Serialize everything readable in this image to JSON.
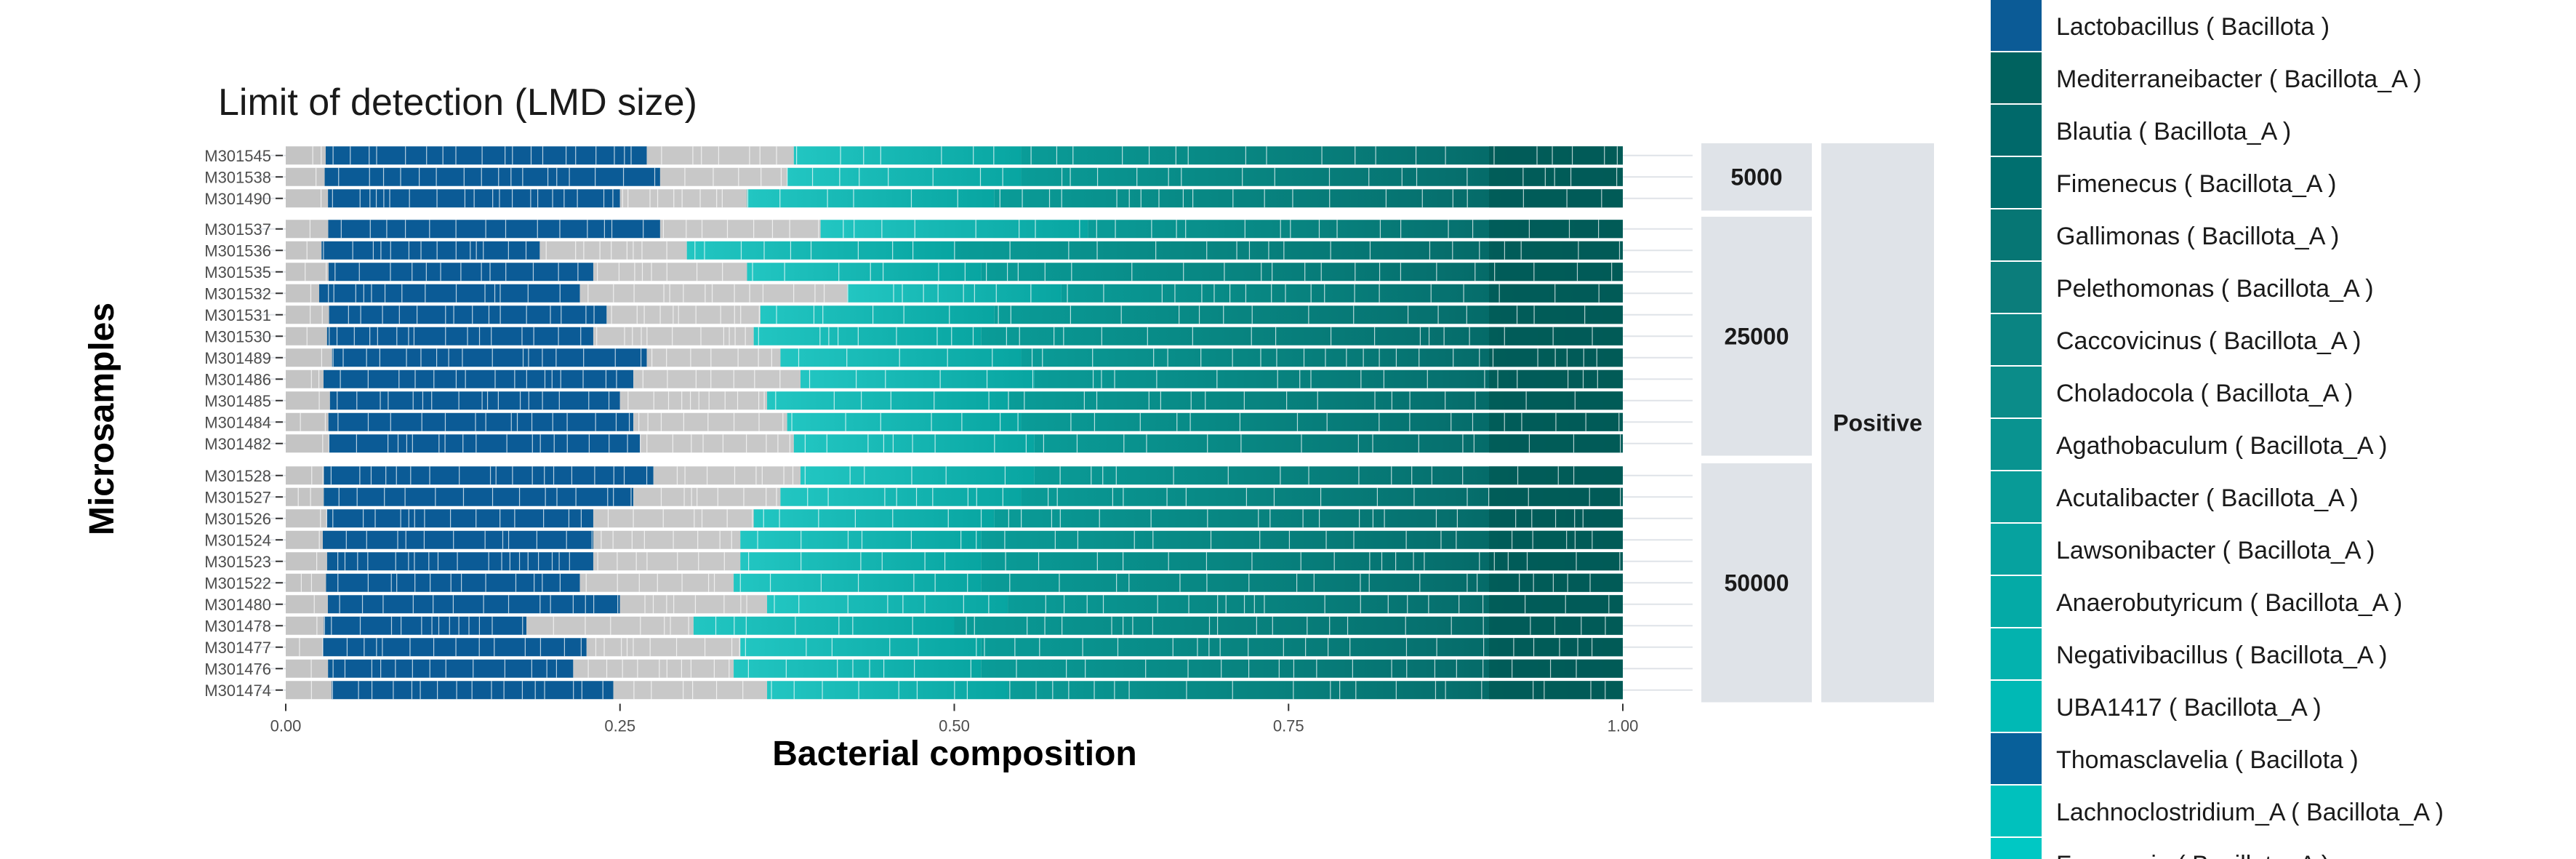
{
  "chart_data": {
    "type": "bar",
    "orientation": "horizontal",
    "stacked": true,
    "title": "Limit of detection (LMD size)",
    "xlabel": "Bacterial composition",
    "ylabel": "Microsamples",
    "xlim": [
      0,
      1
    ],
    "x_ticks": [
      "0.00",
      "0.25",
      "0.50",
      "0.75",
      "1.00"
    ],
    "facet_outer": "Positive",
    "facets": [
      {
        "label": "5000",
        "samples": [
          {
            "id": "M301545",
            "lactobacillus": 0.27,
            "grey_end": 0.38,
            "cyan_end": 0.55
          },
          {
            "id": "M301538",
            "lactobacillus": 0.28,
            "grey_end": 0.375,
            "cyan_end": 0.55
          },
          {
            "id": "M301490",
            "lactobacillus": 0.25,
            "grey_end": 0.345,
            "cyan_end": 0.53
          }
        ]
      },
      {
        "label": "25000",
        "samples": [
          {
            "id": "M301537",
            "lactobacillus": 0.28,
            "grey_end": 0.4,
            "cyan_end": 0.6
          },
          {
            "id": "M301536",
            "lactobacillus": 0.19,
            "grey_end": 0.3,
            "cyan_end": 0.5
          },
          {
            "id": "M301535",
            "lactobacillus": 0.23,
            "grey_end": 0.345,
            "cyan_end": 0.52
          },
          {
            "id": "M301532",
            "lactobacillus": 0.22,
            "grey_end": 0.42,
            "cyan_end": 0.58
          },
          {
            "id": "M301531",
            "lactobacillus": 0.24,
            "grey_end": 0.355,
            "cyan_end": 0.53
          },
          {
            "id": "M301530",
            "lactobacillus": 0.23,
            "grey_end": 0.35,
            "cyan_end": 0.52
          },
          {
            "id": "M301489",
            "lactobacillus": 0.27,
            "grey_end": 0.37,
            "cyan_end": 0.55
          },
          {
            "id": "M301486",
            "lactobacillus": 0.26,
            "grey_end": 0.385,
            "cyan_end": 0.56
          },
          {
            "id": "M301485",
            "lactobacillus": 0.25,
            "grey_end": 0.36,
            "cyan_end": 0.54
          },
          {
            "id": "M301484",
            "lactobacillus": 0.26,
            "grey_end": 0.375,
            "cyan_end": 0.55
          },
          {
            "id": "M301482",
            "lactobacillus": 0.265,
            "grey_end": 0.38,
            "cyan_end": 0.56
          }
        ]
      },
      {
        "label": "50000",
        "samples": [
          {
            "id": "M301528",
            "lactobacillus": 0.275,
            "grey_end": 0.385,
            "cyan_end": 0.56
          },
          {
            "id": "M301527",
            "lactobacillus": 0.26,
            "grey_end": 0.37,
            "cyan_end": 0.55
          },
          {
            "id": "M301526",
            "lactobacillus": 0.23,
            "grey_end": 0.35,
            "cyan_end": 0.53
          },
          {
            "id": "M301524",
            "lactobacillus": 0.23,
            "grey_end": 0.34,
            "cyan_end": 0.52
          },
          {
            "id": "M301523",
            "lactobacillus": 0.23,
            "grey_end": 0.34,
            "cyan_end": 0.52
          },
          {
            "id": "M301522",
            "lactobacillus": 0.22,
            "grey_end": 0.335,
            "cyan_end": 0.52
          },
          {
            "id": "M301480",
            "lactobacillus": 0.25,
            "grey_end": 0.36,
            "cyan_end": 0.54
          },
          {
            "id": "M301478",
            "lactobacillus": 0.18,
            "grey_end": 0.305,
            "cyan_end": 0.5
          },
          {
            "id": "M301477",
            "lactobacillus": 0.225,
            "grey_end": 0.34,
            "cyan_end": 0.52
          },
          {
            "id": "M301476",
            "lactobacillus": 0.215,
            "grey_end": 0.335,
            "cyan_end": 0.52
          },
          {
            "id": "M301474",
            "lactobacillus": 0.245,
            "grey_end": 0.36,
            "cyan_end": 0.54
          }
        ]
      }
    ],
    "legend_position": "right",
    "legend": [
      {
        "label": "Lactobacillus ( Bacillota )",
        "color": "#0b5b96"
      },
      {
        "label": "Mediterraneibacter ( Bacillota_A )",
        "color": "#00625f"
      },
      {
        "label": "Blautia ( Bacillota_A )",
        "color": "#00696a"
      },
      {
        "label": "Fimenecus ( Bacillota_A )",
        "color": "#006f6f"
      },
      {
        "label": "Gallimonas ( Bacillota_A )",
        "color": "#067674"
      },
      {
        "label": "Pelethomonas ( Bacillota_A )",
        "color": "#0b7d7b"
      },
      {
        "label": "Caccovicinus ( Bacillota_A )",
        "color": "#0a8482"
      },
      {
        "label": "Choladocola ( Bacillota_A )",
        "color": "#0b8c89"
      },
      {
        "label": "Agathobaculum ( Bacillota_A )",
        "color": "#099390"
      },
      {
        "label": "Acutalibacter ( Bacillota_A )",
        "color": "#089b97"
      },
      {
        "label": "Lawsonibacter ( Bacillota_A )",
        "color": "#06a29f"
      },
      {
        "label": "Anaerobutyricum ( Bacillota_A )",
        "color": "#04aaa6"
      },
      {
        "label": "Negativibacillus ( Bacillota_A )",
        "color": "#03b2ae"
      },
      {
        "label": "UBA1417 ( Bacillota_A )",
        "color": "#00b9b5"
      },
      {
        "label": "Thomasclavelia ( Bacillota )",
        "color": "#08609a"
      },
      {
        "label": "Lachnoclostridium_A ( Bacillota_A )",
        "color": "#00c1bd"
      },
      {
        "label": "Faecousia ( Bacillota_A )",
        "color": "#00c8c4"
      }
    ]
  }
}
